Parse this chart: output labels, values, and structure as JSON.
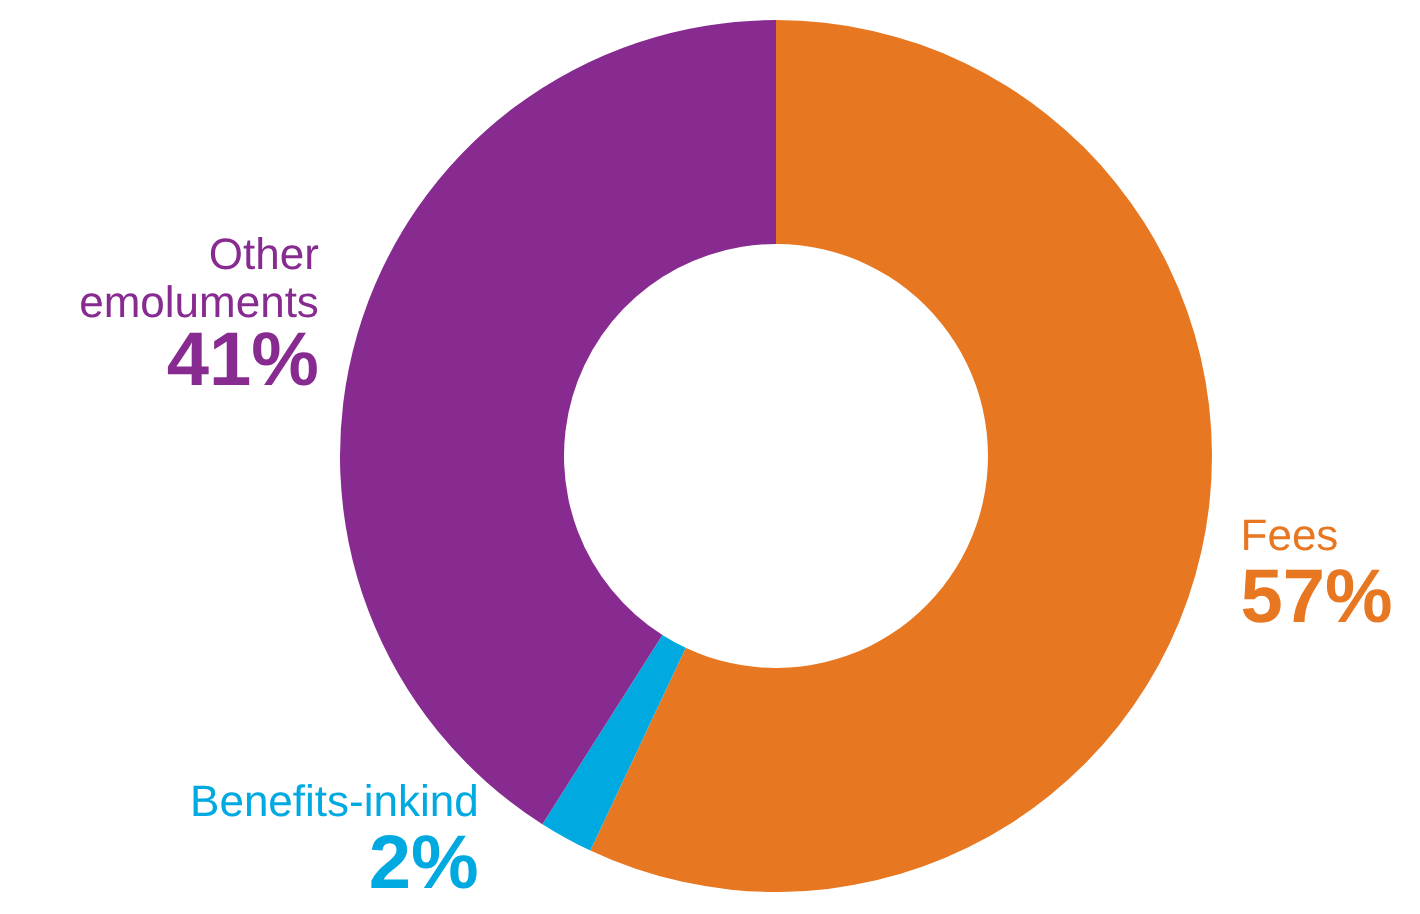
{
  "chart_data": {
    "type": "donut",
    "categories": [
      "Fees",
      "Benefits-inkind",
      "Other emoluments"
    ],
    "values": [
      57,
      2,
      41
    ],
    "colors": [
      "#e87722",
      "#00a9e0",
      "#872b90"
    ],
    "value_labels": [
      "57%",
      "2%",
      "41%"
    ]
  }
}
